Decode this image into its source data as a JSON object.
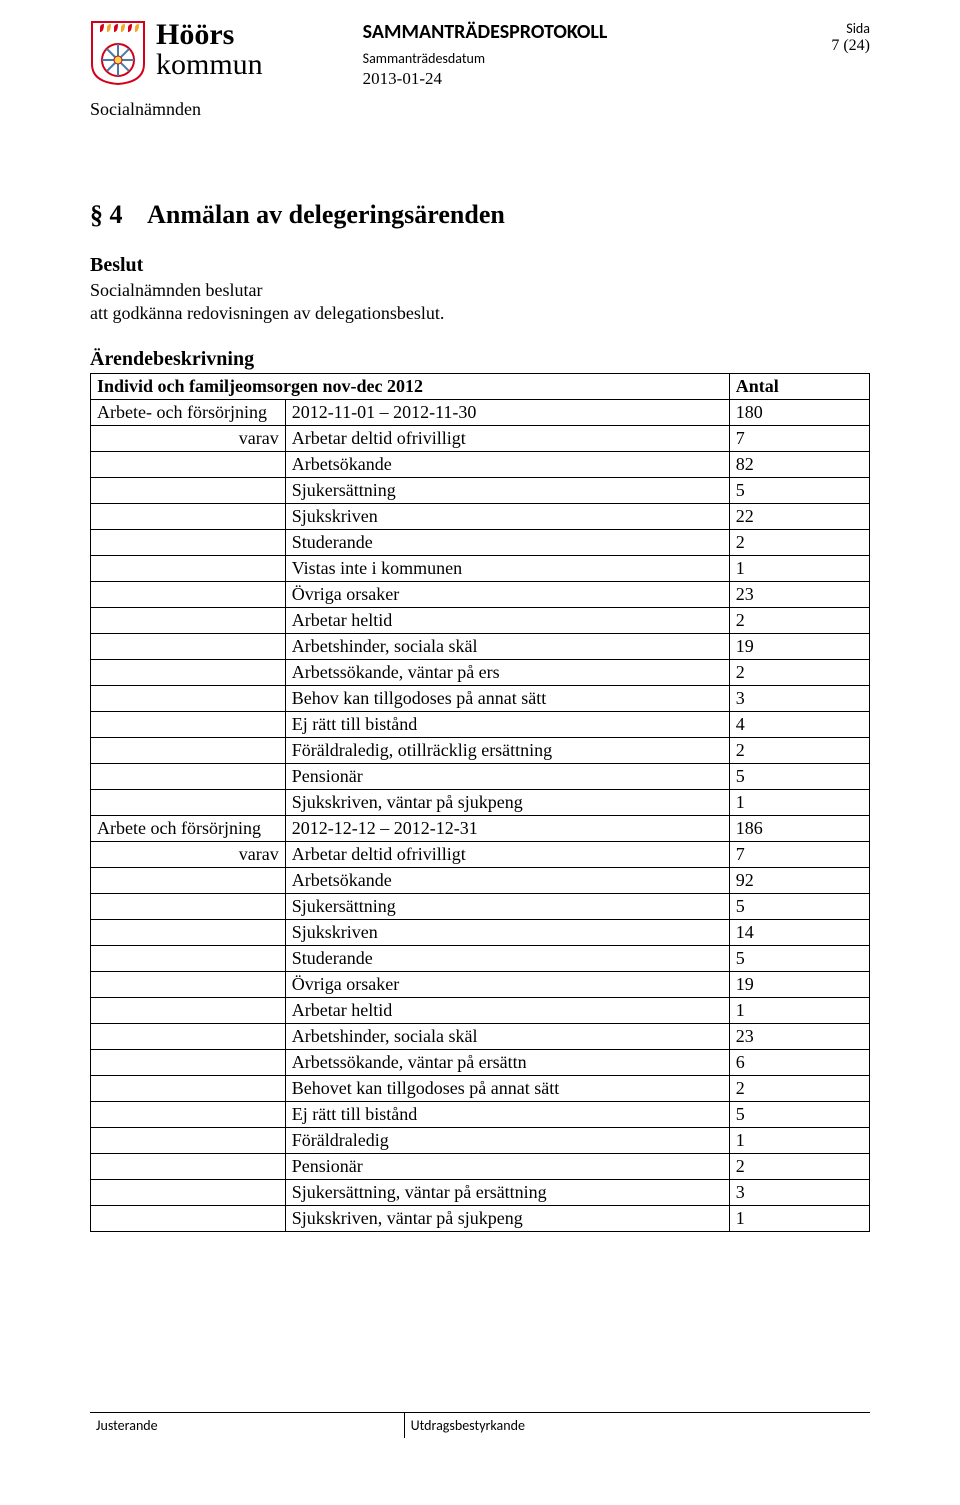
{
  "header": {
    "logo": {
      "line1": "Höörs",
      "line2": "kommun"
    },
    "doc_title": "SAMMANTRÄDESPROTOKOLL",
    "date_label": "Sammanträdesdatum",
    "date_value": "2013-01-24",
    "side_label": "Sida",
    "page_number": "7 (24)",
    "committee": "Socialnämnden"
  },
  "section": {
    "number": "§ 4",
    "title": "Anmälan av delegeringsärenden",
    "beslut_label": "Beslut",
    "beslut_text_l1": "Socialnämnden beslutar",
    "beslut_text_l2": "att  godkänna redovisningen av delegationsbeslut.",
    "arende_label": "Ärendebeskrivning"
  },
  "table": {
    "header": {
      "c1": "Individ och familjeomsorgen nov-dec 2012",
      "c3": "Antal"
    },
    "rows": [
      {
        "c1": "Arbete- och försörjning",
        "c2": "2012-11-01 – 2012-11-30",
        "c3": "180"
      },
      {
        "c1": "varav",
        "c2": "Arbetar deltid ofrivilligt",
        "c3": "7",
        "c1align": "right"
      },
      {
        "c1": "",
        "c2": "Arbetsökande",
        "c3": "82"
      },
      {
        "c1": "",
        "c2": "Sjukersättning",
        "c3": "5"
      },
      {
        "c1": "",
        "c2": "Sjukskriven",
        "c3": "22"
      },
      {
        "c1": "",
        "c2": "Studerande",
        "c3": "2"
      },
      {
        "c1": "",
        "c2": "Vistas inte i kommunen",
        "c3": "1"
      },
      {
        "c1": "",
        "c2": "Övriga orsaker",
        "c3": "23"
      },
      {
        "c1": "",
        "c2": "Arbetar heltid",
        "c3": "2"
      },
      {
        "c1": "",
        "c2": "Arbetshinder, sociala skäl",
        "c3": "19"
      },
      {
        "c1": "",
        "c2": "Arbetssökande, väntar på ers",
        "c3": "2"
      },
      {
        "c1": "",
        "c2": "Behov kan tillgodoses på annat sätt",
        "c3": "3"
      },
      {
        "c1": "",
        "c2": "Ej rätt till bistånd",
        "c3": "4"
      },
      {
        "c1": "",
        "c2": "Föräldraledig, otillräcklig ersättning",
        "c3": "2"
      },
      {
        "c1": "",
        "c2": "Pensionär",
        "c3": "5"
      },
      {
        "c1": "",
        "c2": "Sjukskriven, väntar på sjukpeng",
        "c3": "1"
      },
      {
        "c1": "Arbete och försörjning",
        "c2": "2012-12-12 – 2012-12-31",
        "c3": "186"
      },
      {
        "c1": "varav",
        "c2": "Arbetar deltid ofrivilligt",
        "c3": "7",
        "c1align": "right"
      },
      {
        "c1": "",
        "c2": "Arbetsökande",
        "c3": "92"
      },
      {
        "c1": "",
        "c2": "Sjukersättning",
        "c3": "5"
      },
      {
        "c1": "",
        "c2": "Sjukskriven",
        "c3": "14"
      },
      {
        "c1": "",
        "c2": "Studerande",
        "c3": "5"
      },
      {
        "c1": "",
        "c2": "Övriga orsaker",
        "c3": "19"
      },
      {
        "c1": "",
        "c2": "Arbetar heltid",
        "c3": "1"
      },
      {
        "c1": "",
        "c2": "Arbetshinder, sociala skäl",
        "c3": "23"
      },
      {
        "c1": "",
        "c2": "Arbetssökande, väntar på ersättn",
        "c3": "6"
      },
      {
        "c1": "",
        "c2": "Behovet kan tillgodoses på annat sätt",
        "c3": "2"
      },
      {
        "c1": "",
        "c2": "Ej rätt till bistånd",
        "c3": "5"
      },
      {
        "c1": "",
        "c2": "Föräldraledig",
        "c3": "1"
      },
      {
        "c1": "",
        "c2": "Pensionär",
        "c3": "2"
      },
      {
        "c1": "",
        "c2": "Sjukersättning, väntar på ersättning",
        "c3": "3"
      },
      {
        "c1": "",
        "c2": "Sjukskriven, väntar på sjukpeng",
        "c3": "1"
      }
    ]
  },
  "footer": {
    "left": "Justerande",
    "right": "Utdragsbestyrkande"
  },
  "logo_colors": {
    "shield_bg": "#ffffff",
    "shield_border": "#d4001a",
    "red": "#d4001a",
    "orange": "#f5a623",
    "yellow": "#f8d84c",
    "blue": "#4a7ba6"
  }
}
